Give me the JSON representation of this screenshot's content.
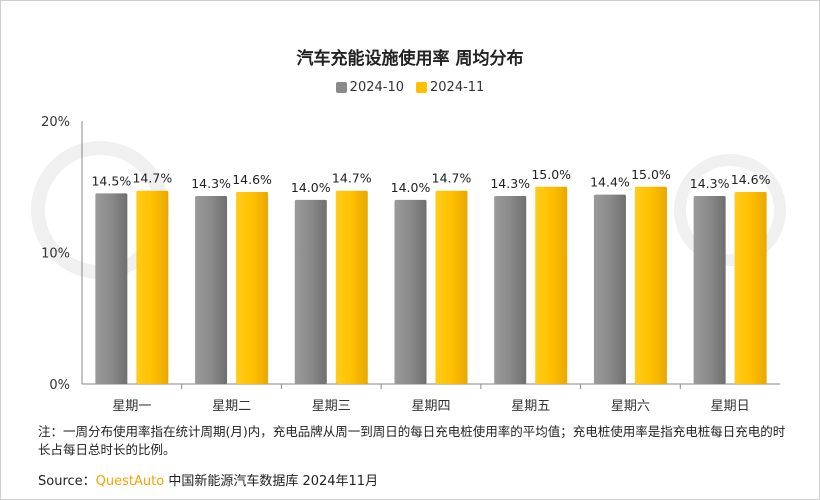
{
  "chart_data": {
    "type": "bar",
    "title": "汽车充能设施使用率 周均分布",
    "categories": [
      "星期一",
      "星期二",
      "星期三",
      "星期四",
      "星期五",
      "星期六",
      "星期日"
    ],
    "series": [
      {
        "name": "2024-10",
        "values": [
          14.5,
          14.3,
          14.0,
          14.0,
          14.3,
          14.4,
          14.3
        ],
        "color": "#8a8a8a"
      },
      {
        "name": "2024-11",
        "values": [
          14.7,
          14.6,
          14.7,
          14.7,
          15.0,
          15.0,
          14.6
        ],
        "color": "#ffc000"
      }
    ],
    "ylim": [
      0,
      20
    ],
    "yticks": [
      0,
      10,
      20
    ],
    "ytick_labels": [
      "0%",
      "10%",
      "20%"
    ],
    "value_suffix": "%",
    "grid": false,
    "legend_position": "top-center"
  },
  "note": "注：一周分布使用率指在统计周期(月)内，充电品牌从周一到周日的每日充电桩使用率的平均值；充电桩使用率是指充电桩每日充电的时长占每日总时长的比例。",
  "source_label": "Source：",
  "source_brand": "QuestAuto",
  "source_text": " 中国新能源汽车数据库 2024年11月"
}
